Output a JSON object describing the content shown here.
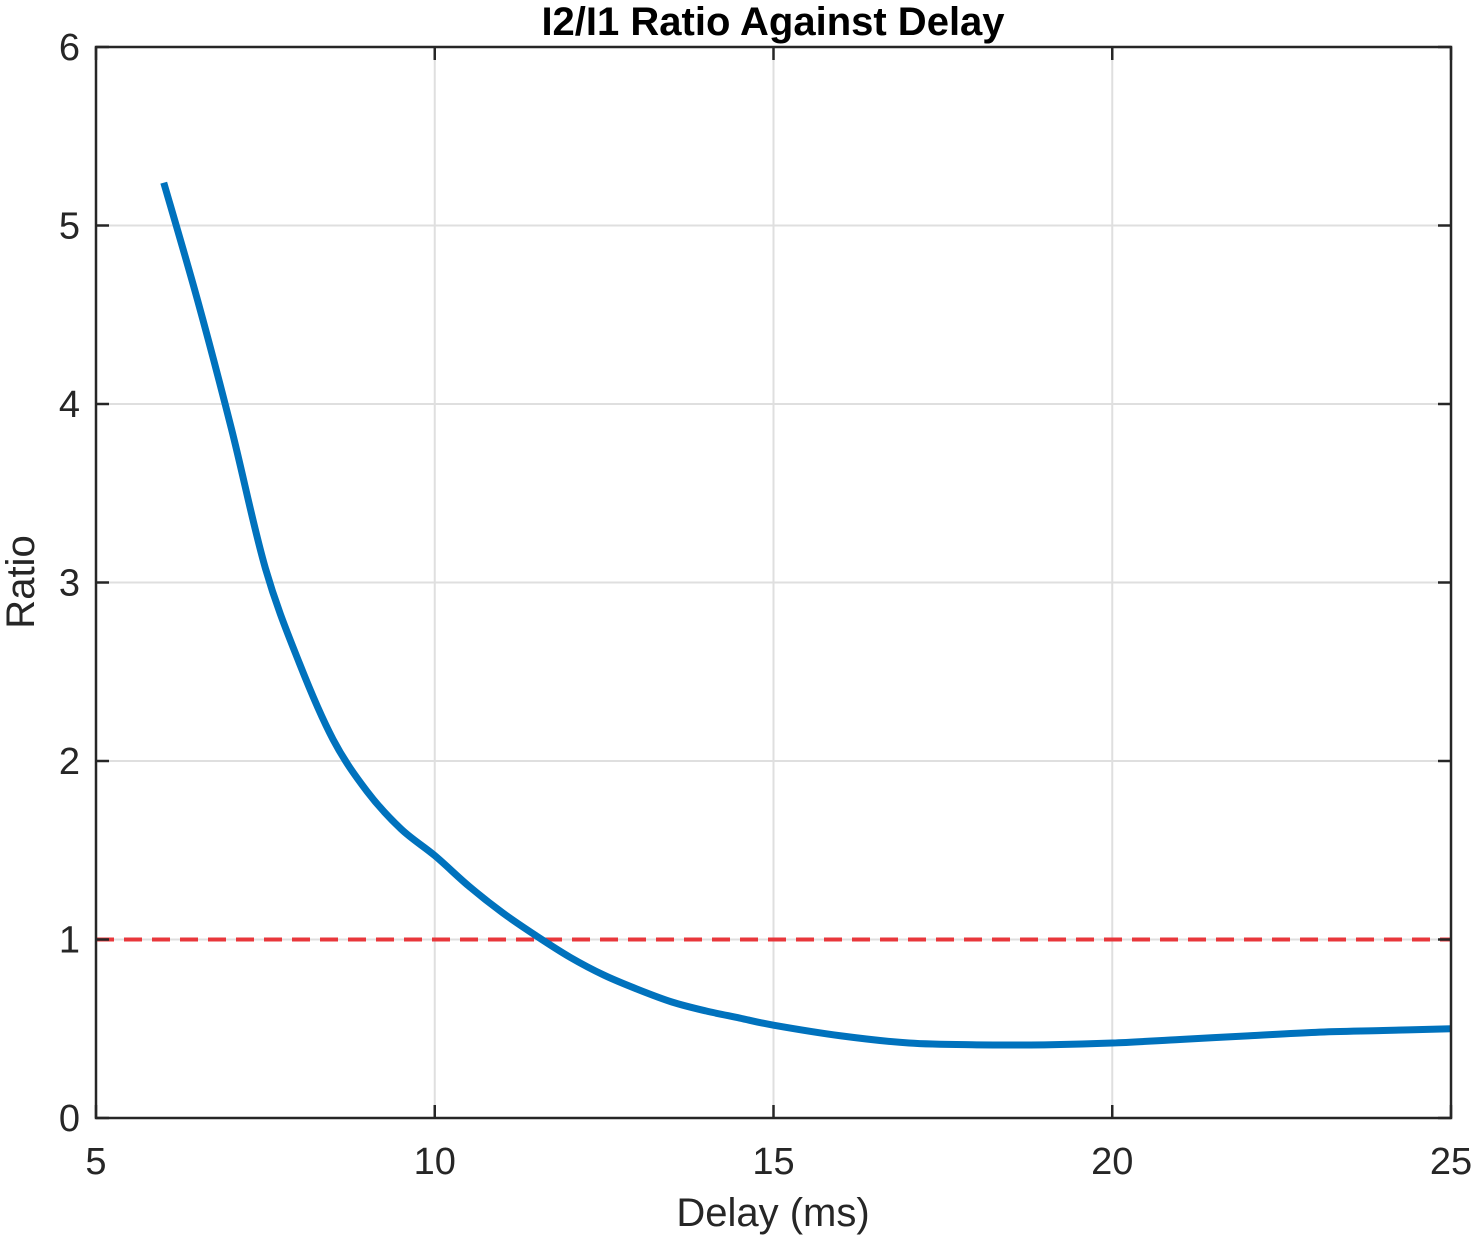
{
  "chart_data": {
    "type": "line",
    "title": "I2/I1 Ratio Against Delay",
    "xlabel": "Delay (ms)",
    "ylabel": "Ratio",
    "xlim": [
      5,
      25
    ],
    "ylim": [
      0,
      6
    ],
    "x_ticks": [
      "5",
      "10",
      "15",
      "20",
      "25"
    ],
    "y_ticks": [
      "0",
      "1",
      "2",
      "3",
      "4",
      "5",
      "6"
    ],
    "grid": true,
    "series": [
      {
        "color": "#0072BD",
        "style": "solid",
        "x": [
          6.0,
          6.5,
          7.0,
          7.5,
          8.0,
          8.5,
          9.0,
          9.5,
          10.0,
          10.5,
          11.0,
          11.5,
          12.0,
          12.5,
          13.0,
          13.5,
          14.0,
          14.5,
          15.0,
          16.0,
          17.0,
          18.0,
          19.0,
          20.0,
          21.0,
          22.0,
          23.0,
          24.0,
          25.0
        ],
        "y": [
          5.24,
          4.58,
          3.86,
          3.08,
          2.55,
          2.12,
          1.83,
          1.62,
          1.47,
          1.3,
          1.15,
          1.02,
          0.9,
          0.8,
          0.72,
          0.65,
          0.6,
          0.56,
          0.52,
          0.46,
          0.42,
          0.41,
          0.41,
          0.42,
          0.44,
          0.46,
          0.48,
          0.49,
          0.5
        ]
      },
      {
        "color": "#E8373B",
        "style": "dashed",
        "x": [
          5,
          25
        ],
        "y": [
          1,
          1
        ]
      }
    ]
  }
}
